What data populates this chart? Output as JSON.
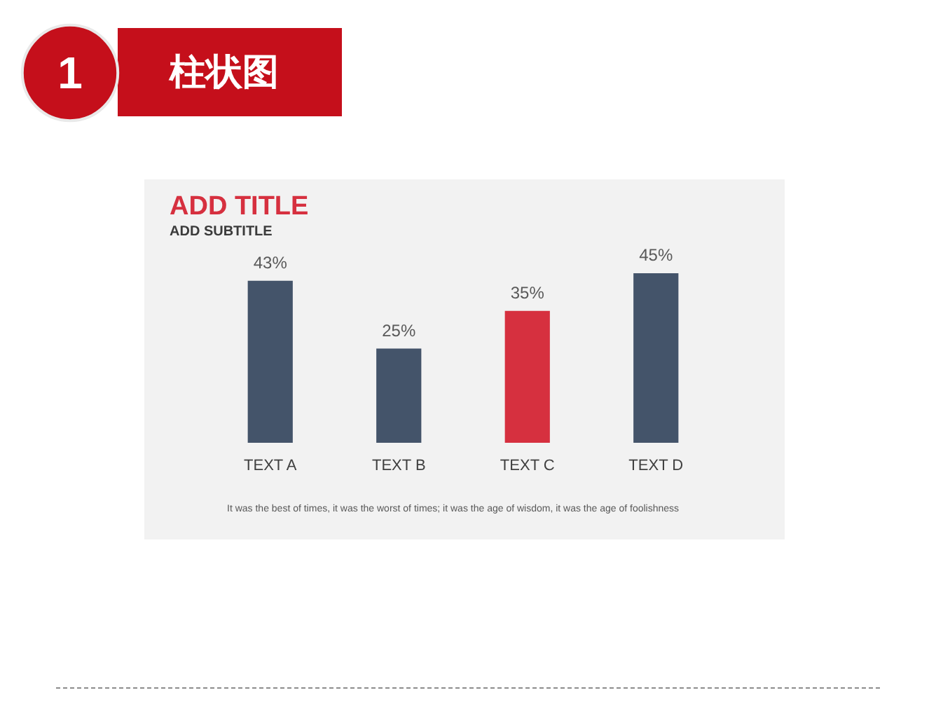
{
  "chart_data": {
    "type": "bar",
    "title": "ADD TITLE",
    "subtitle": "ADD SUBTITLE",
    "categories": [
      "TEXT A",
      "TEXT B",
      "TEXT C",
      "TEXT D"
    ],
    "values": [
      43,
      25,
      35,
      45
    ],
    "colors": [
      "#44546a",
      "#44546a",
      "#d6303f",
      "#44546a"
    ],
    "value_labels": [
      "43%",
      "25%",
      "35%",
      "45%"
    ],
    "annotations": [
      "1",
      "柱状图",
      "It was the best of times, it was the worst of times; it was the age of wisdom, it was the age of foolishness"
    ]
  }
}
